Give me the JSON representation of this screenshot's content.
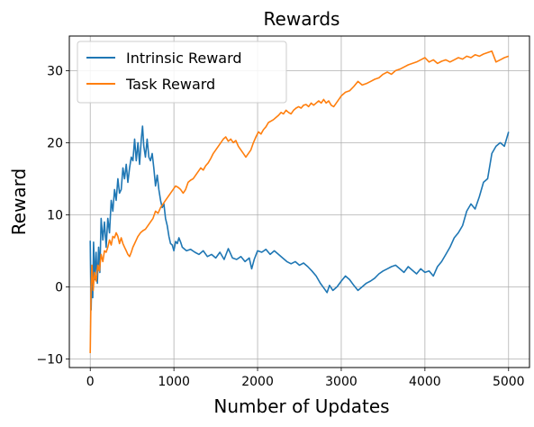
{
  "chart_data": {
    "type": "line",
    "title": "Rewards",
    "xlabel": "Number of Updates",
    "ylabel": "Reward",
    "xlim": [
      -250,
      5250
    ],
    "ylim": [
      -11.2,
      34.8
    ],
    "xticks": [
      0,
      1000,
      2000,
      3000,
      4000,
      5000
    ],
    "yticks": [
      -10,
      0,
      10,
      20,
      30
    ],
    "grid": true,
    "legend_position": "top-left",
    "series": [
      {
        "name": "Intrinsic Reward",
        "color": "#1f77b4",
        "points": [
          [
            0,
            6.4
          ],
          [
            10,
            -3.2
          ],
          [
            20,
            2.5
          ],
          [
            30,
            -1.5
          ],
          [
            40,
            6.2
          ],
          [
            55,
            1.0
          ],
          [
            70,
            4.8
          ],
          [
            85,
            0.5
          ],
          [
            100,
            5.5
          ],
          [
            115,
            2.0
          ],
          [
            130,
            9.5
          ],
          [
            150,
            6.5
          ],
          [
            170,
            9.0
          ],
          [
            190,
            5.5
          ],
          [
            210,
            9.5
          ],
          [
            230,
            7.5
          ],
          [
            250,
            12.0
          ],
          [
            270,
            10.5
          ],
          [
            290,
            13.5
          ],
          [
            310,
            12.0
          ],
          [
            330,
            15.0
          ],
          [
            350,
            13.0
          ],
          [
            370,
            13.5
          ],
          [
            390,
            16.5
          ],
          [
            410,
            15.0
          ],
          [
            430,
            17.0
          ],
          [
            450,
            14.5
          ],
          [
            470,
            16.5
          ],
          [
            490,
            18.0
          ],
          [
            510,
            17.5
          ],
          [
            530,
            20.5
          ],
          [
            550,
            17.5
          ],
          [
            570,
            20.0
          ],
          [
            590,
            17.0
          ],
          [
            610,
            20.5
          ],
          [
            625,
            22.3
          ],
          [
            640,
            19.5
          ],
          [
            660,
            18.0
          ],
          [
            680,
            20.5
          ],
          [
            700,
            18.0
          ],
          [
            720,
            17.5
          ],
          [
            740,
            18.5
          ],
          [
            760,
            16.5
          ],
          [
            780,
            14.0
          ],
          [
            800,
            15.5
          ],
          [
            820,
            13.5
          ],
          [
            840,
            12.0
          ],
          [
            860,
            11.0
          ],
          [
            880,
            11.5
          ],
          [
            900,
            9.5
          ],
          [
            920,
            8.5
          ],
          [
            940,
            7.0
          ],
          [
            960,
            6.0
          ],
          [
            980,
            5.8
          ],
          [
            1000,
            5.0
          ],
          [
            1020,
            6.3
          ],
          [
            1040,
            6.0
          ],
          [
            1060,
            6.8
          ],
          [
            1080,
            6.2
          ],
          [
            1100,
            5.5
          ],
          [
            1150,
            5.0
          ],
          [
            1200,
            5.2
          ],
          [
            1250,
            4.8
          ],
          [
            1300,
            4.5
          ],
          [
            1350,
            5.0
          ],
          [
            1400,
            4.2
          ],
          [
            1450,
            4.5
          ],
          [
            1500,
            4.0
          ],
          [
            1550,
            4.8
          ],
          [
            1600,
            3.8
          ],
          [
            1650,
            5.3
          ],
          [
            1700,
            4.0
          ],
          [
            1750,
            3.8
          ],
          [
            1800,
            4.2
          ],
          [
            1850,
            3.5
          ],
          [
            1900,
            4.0
          ],
          [
            1930,
            2.5
          ],
          [
            1960,
            3.8
          ],
          [
            2000,
            5.0
          ],
          [
            2050,
            4.8
          ],
          [
            2100,
            5.2
          ],
          [
            2150,
            4.5
          ],
          [
            2200,
            5.0
          ],
          [
            2250,
            4.5
          ],
          [
            2300,
            4.0
          ],
          [
            2350,
            3.5
          ],
          [
            2400,
            3.2
          ],
          [
            2450,
            3.5
          ],
          [
            2500,
            3.0
          ],
          [
            2550,
            3.3
          ],
          [
            2600,
            2.8
          ],
          [
            2650,
            2.2
          ],
          [
            2700,
            1.5
          ],
          [
            2750,
            0.5
          ],
          [
            2800,
            -0.3
          ],
          [
            2830,
            -0.8
          ],
          [
            2860,
            0.2
          ],
          [
            2900,
            -0.5
          ],
          [
            2950,
            0.0
          ],
          [
            3000,
            0.8
          ],
          [
            3050,
            1.5
          ],
          [
            3100,
            1.0
          ],
          [
            3150,
            0.2
          ],
          [
            3200,
            -0.5
          ],
          [
            3250,
            0.0
          ],
          [
            3300,
            0.5
          ],
          [
            3350,
            0.8
          ],
          [
            3400,
            1.2
          ],
          [
            3450,
            1.8
          ],
          [
            3500,
            2.2
          ],
          [
            3550,
            2.5
          ],
          [
            3600,
            2.8
          ],
          [
            3650,
            3.0
          ],
          [
            3700,
            2.5
          ],
          [
            3750,
            2.0
          ],
          [
            3800,
            2.8
          ],
          [
            3850,
            2.3
          ],
          [
            3900,
            1.8
          ],
          [
            3950,
            2.5
          ],
          [
            4000,
            2.0
          ],
          [
            4050,
            2.2
          ],
          [
            4100,
            1.5
          ],
          [
            4150,
            2.8
          ],
          [
            4200,
            3.5
          ],
          [
            4250,
            4.5
          ],
          [
            4300,
            5.5
          ],
          [
            4350,
            6.8
          ],
          [
            4400,
            7.5
          ],
          [
            4450,
            8.5
          ],
          [
            4500,
            10.5
          ],
          [
            4550,
            11.5
          ],
          [
            4600,
            10.8
          ],
          [
            4650,
            12.5
          ],
          [
            4700,
            14.5
          ],
          [
            4750,
            15.0
          ],
          [
            4800,
            18.5
          ],
          [
            4850,
            19.5
          ],
          [
            4900,
            20.0
          ],
          [
            4950,
            19.5
          ],
          [
            5000,
            21.5
          ]
        ]
      },
      {
        "name": "Task Reward",
        "color": "#ff7f0e",
        "points": [
          [
            0,
            -9.2
          ],
          [
            10,
            0.0
          ],
          [
            20,
            3.0
          ],
          [
            35,
            -0.5
          ],
          [
            50,
            2.0
          ],
          [
            70,
            0.8
          ],
          [
            90,
            3.0
          ],
          [
            110,
            2.2
          ],
          [
            130,
            4.5
          ],
          [
            150,
            3.5
          ],
          [
            170,
            5.0
          ],
          [
            190,
            4.8
          ],
          [
            210,
            5.5
          ],
          [
            230,
            6.5
          ],
          [
            250,
            5.8
          ],
          [
            270,
            7.0
          ],
          [
            290,
            6.8
          ],
          [
            310,
            7.5
          ],
          [
            330,
            7.0
          ],
          [
            350,
            6.0
          ],
          [
            370,
            6.8
          ],
          [
            390,
            6.0
          ],
          [
            410,
            5.5
          ],
          [
            430,
            5.0
          ],
          [
            450,
            4.5
          ],
          [
            470,
            4.2
          ],
          [
            490,
            4.8
          ],
          [
            510,
            5.5
          ],
          [
            530,
            6.0
          ],
          [
            550,
            6.5
          ],
          [
            570,
            7.0
          ],
          [
            600,
            7.5
          ],
          [
            630,
            7.8
          ],
          [
            660,
            8.0
          ],
          [
            690,
            8.5
          ],
          [
            720,
            9.0
          ],
          [
            750,
            9.5
          ],
          [
            780,
            10.5
          ],
          [
            810,
            10.2
          ],
          [
            840,
            11.0
          ],
          [
            870,
            11.5
          ],
          [
            900,
            12.0
          ],
          [
            930,
            12.5
          ],
          [
            960,
            13.0
          ],
          [
            990,
            13.5
          ],
          [
            1020,
            14.0
          ],
          [
            1050,
            13.8
          ],
          [
            1080,
            13.5
          ],
          [
            1110,
            13.0
          ],
          [
            1140,
            13.5
          ],
          [
            1170,
            14.5
          ],
          [
            1200,
            14.8
          ],
          [
            1230,
            15.0
          ],
          [
            1260,
            15.5
          ],
          [
            1290,
            16.0
          ],
          [
            1320,
            16.5
          ],
          [
            1350,
            16.2
          ],
          [
            1380,
            16.8
          ],
          [
            1410,
            17.2
          ],
          [
            1440,
            17.8
          ],
          [
            1470,
            18.5
          ],
          [
            1500,
            19.0
          ],
          [
            1530,
            19.5
          ],
          [
            1560,
            20.0
          ],
          [
            1590,
            20.5
          ],
          [
            1620,
            20.8
          ],
          [
            1650,
            20.2
          ],
          [
            1680,
            20.5
          ],
          [
            1710,
            20.0
          ],
          [
            1740,
            20.3
          ],
          [
            1770,
            19.5
          ],
          [
            1800,
            19.0
          ],
          [
            1830,
            18.5
          ],
          [
            1860,
            18.0
          ],
          [
            1890,
            18.5
          ],
          [
            1920,
            19.0
          ],
          [
            1950,
            20.0
          ],
          [
            1980,
            20.8
          ],
          [
            2010,
            21.5
          ],
          [
            2040,
            21.2
          ],
          [
            2070,
            21.8
          ],
          [
            2100,
            22.2
          ],
          [
            2130,
            22.8
          ],
          [
            2160,
            23.0
          ],
          [
            2190,
            23.2
          ],
          [
            2220,
            23.5
          ],
          [
            2250,
            23.8
          ],
          [
            2280,
            24.2
          ],
          [
            2310,
            24.0
          ],
          [
            2340,
            24.5
          ],
          [
            2370,
            24.2
          ],
          [
            2400,
            24.0
          ],
          [
            2430,
            24.5
          ],
          [
            2460,
            24.8
          ],
          [
            2490,
            25.0
          ],
          [
            2520,
            24.8
          ],
          [
            2550,
            25.2
          ],
          [
            2580,
            25.3
          ],
          [
            2610,
            25.0
          ],
          [
            2640,
            25.5
          ],
          [
            2670,
            25.2
          ],
          [
            2700,
            25.5
          ],
          [
            2730,
            25.8
          ],
          [
            2760,
            25.5
          ],
          [
            2790,
            26.0
          ],
          [
            2820,
            25.5
          ],
          [
            2850,
            25.8
          ],
          [
            2880,
            25.2
          ],
          [
            2910,
            25.0
          ],
          [
            2940,
            25.5
          ],
          [
            2970,
            26.0
          ],
          [
            3000,
            26.5
          ],
          [
            3050,
            27.0
          ],
          [
            3100,
            27.2
          ],
          [
            3150,
            27.8
          ],
          [
            3200,
            28.5
          ],
          [
            3250,
            28.0
          ],
          [
            3300,
            28.2
          ],
          [
            3350,
            28.5
          ],
          [
            3400,
            28.8
          ],
          [
            3450,
            29.0
          ],
          [
            3500,
            29.5
          ],
          [
            3550,
            29.8
          ],
          [
            3600,
            29.5
          ],
          [
            3650,
            30.0
          ],
          [
            3700,
            30.2
          ],
          [
            3750,
            30.5
          ],
          [
            3800,
            30.8
          ],
          [
            3850,
            31.0
          ],
          [
            3900,
            31.2
          ],
          [
            3950,
            31.5
          ],
          [
            4000,
            31.8
          ],
          [
            4050,
            31.2
          ],
          [
            4100,
            31.5
          ],
          [
            4150,
            31.0
          ],
          [
            4200,
            31.3
          ],
          [
            4250,
            31.5
          ],
          [
            4300,
            31.2
          ],
          [
            4350,
            31.5
          ],
          [
            4400,
            31.8
          ],
          [
            4450,
            31.6
          ],
          [
            4500,
            32.0
          ],
          [
            4550,
            31.8
          ],
          [
            4600,
            32.2
          ],
          [
            4650,
            32.0
          ],
          [
            4700,
            32.3
          ],
          [
            4750,
            32.5
          ],
          [
            4800,
            32.7
          ],
          [
            4850,
            31.2
          ],
          [
            4900,
            31.5
          ],
          [
            4950,
            31.8
          ],
          [
            5000,
            32.0
          ]
        ]
      }
    ]
  }
}
